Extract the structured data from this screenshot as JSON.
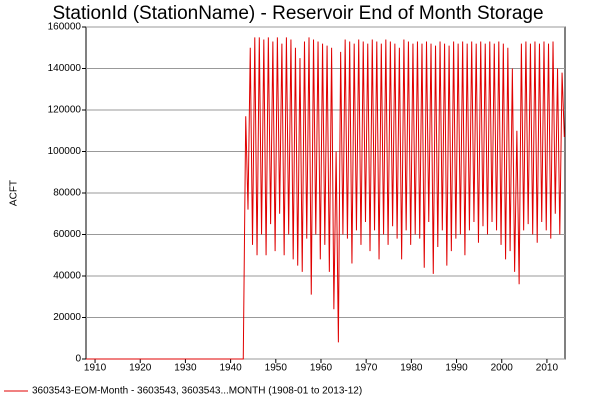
{
  "chart_data": {
    "type": "line",
    "title": "StationId (StationName) - Reservoir End of Month Storage",
    "y_label": "ACFT",
    "xlim": [
      1908,
      2014
    ],
    "xticks": [
      1910,
      1920,
      1930,
      1940,
      1950,
      1960,
      1970,
      1980,
      1990,
      2000,
      2010
    ],
    "ylim": [
      0,
      160000
    ],
    "yticks": [
      0,
      20000,
      40000,
      60000,
      80000,
      100000,
      120000,
      140000,
      160000
    ],
    "grid": true,
    "legend": "bottom",
    "x": [
      1908,
      1942.8,
      1943.35,
      1943.85,
      1944.35,
      1944.85,
      1945.35,
      1945.85,
      1946.35,
      1946.85,
      1947.35,
      1947.85,
      1948.35,
      1948.85,
      1949.35,
      1949.85,
      1950.35,
      1950.85,
      1951.35,
      1951.85,
      1952.35,
      1952.85,
      1953.35,
      1953.85,
      1954.35,
      1954.85,
      1955.35,
      1955.85,
      1956.35,
      1956.85,
      1957.35,
      1957.85,
      1958.35,
      1958.85,
      1959.35,
      1959.85,
      1960.35,
      1960.85,
      1961.35,
      1961.85,
      1962.35,
      1962.85,
      1963.35,
      1963.85,
      1964.35,
      1964.85,
      1965.35,
      1965.85,
      1966.35,
      1966.85,
      1967.35,
      1967.85,
      1968.35,
      1968.85,
      1969.35,
      1969.85,
      1970.35,
      1970.85,
      1971.35,
      1971.85,
      1972.35,
      1972.85,
      1973.35,
      1973.85,
      1974.35,
      1974.85,
      1975.35,
      1975.85,
      1976.35,
      1976.85,
      1977.35,
      1977.85,
      1978.35,
      1978.85,
      1979.35,
      1979.85,
      1980.35,
      1980.85,
      1981.35,
      1981.85,
      1982.35,
      1982.85,
      1983.35,
      1983.85,
      1984.35,
      1984.85,
      1985.35,
      1985.85,
      1986.35,
      1986.85,
      1987.35,
      1987.85,
      1988.35,
      1988.85,
      1989.35,
      1989.85,
      1990.35,
      1990.85,
      1991.35,
      1991.85,
      1992.35,
      1992.85,
      1993.35,
      1993.85,
      1994.35,
      1994.85,
      1995.35,
      1995.85,
      1996.35,
      1996.85,
      1997.35,
      1997.85,
      1998.35,
      1998.85,
      1999.35,
      1999.85,
      2000.35,
      2000.85,
      2001.35,
      2001.85,
      2002.35,
      2002.85,
      2003.35,
      2003.85,
      2004.35,
      2004.85,
      2005.35,
      2005.85,
      2006.35,
      2006.85,
      2007.35,
      2007.85,
      2008.35,
      2008.85,
      2009.35,
      2009.85,
      2010.35,
      2010.85,
      2011.35,
      2011.85,
      2012.35,
      2012.85,
      2013.35,
      2013.85
    ],
    "series": [
      {
        "name": "3603543-EOM-Month - 3603543, 3603543...MONTH (1908-01 to 2013-12)",
        "color": "#e00000",
        "values": [
          0,
          0,
          117000,
          72000,
          150000,
          55000,
          155000,
          50000,
          155000,
          60000,
          154000,
          50000,
          155000,
          65000,
          153000,
          52000,
          155000,
          70000,
          152000,
          50000,
          155000,
          60000,
          154000,
          48000,
          150000,
          45000,
          145000,
          42000,
          153000,
          58000,
          155000,
          31000,
          154000,
          60000,
          153000,
          48000,
          152000,
          55000,
          151000,
          42000,
          150000,
          24000,
          100000,
          8000,
          148000,
          60000,
          154000,
          58000,
          153000,
          46000,
          152000,
          62000,
          154000,
          55000,
          153000,
          66000,
          152000,
          52000,
          154000,
          62000,
          153000,
          48000,
          152000,
          60000,
          154000,
          55000,
          153000,
          64000,
          152000,
          58000,
          150000,
          48000,
          154000,
          62000,
          153000,
          55000,
          152000,
          60000,
          153000,
          58000,
          152000,
          44000,
          153000,
          66000,
          152000,
          41000,
          151000,
          54000,
          153000,
          62000,
          152000,
          45000,
          151000,
          52000,
          153000,
          58000,
          152000,
          60000,
          153000,
          50000,
          152000,
          62000,
          153000,
          66000,
          152000,
          56000,
          153000,
          64000,
          152000,
          60000,
          153000,
          66000,
          152000,
          62000,
          153000,
          55000,
          152000,
          48000,
          150000,
          52000,
          140000,
          42000,
          110000,
          36000,
          152000,
          62000,
          153000,
          65000,
          152000,
          60000,
          153000,
          56000,
          152000,
          66000,
          153000,
          62000,
          152000,
          58000,
          153000,
          70000,
          140000,
          60000,
          138000,
          107000
        ]
      }
    ]
  }
}
